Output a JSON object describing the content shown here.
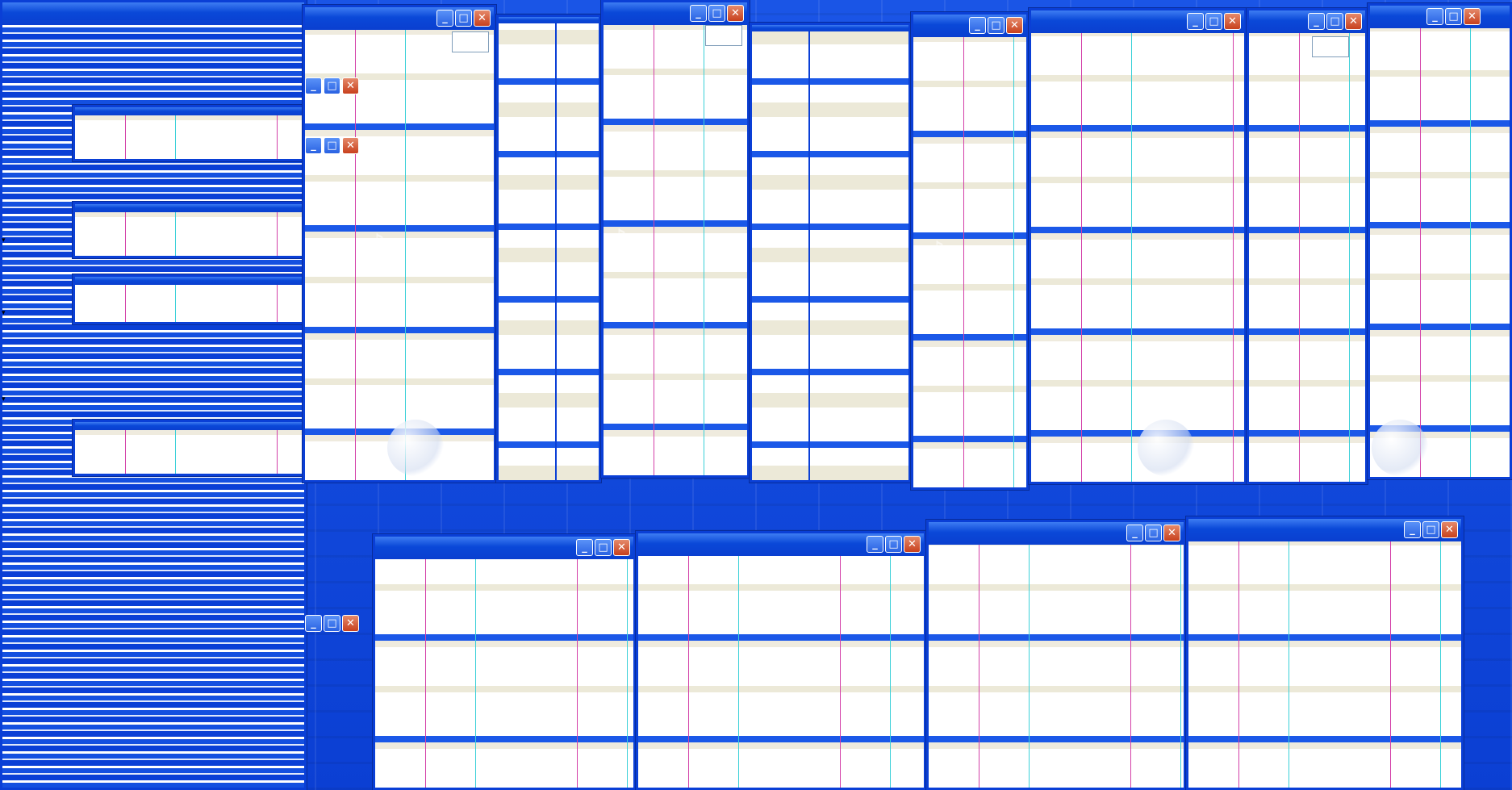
{
  "screen": {
    "description_free": true,
    "theme_colors": {
      "desktop_blue": "#0a3fd6",
      "title_blue": "#2a62e2",
      "close_red": "#c8401d",
      "pane_beige": "#ece9d8",
      "pane_white": "#ffffff"
    }
  },
  "window_controls": {
    "minimize_glyph": "_",
    "maximize_glyph": "□",
    "close_glyph": "✕"
  },
  "icons": {
    "note": "♪",
    "dropdown": "▾",
    "minimize": "minimize-icon",
    "maximize": "maximize-icon",
    "close": "close-icon",
    "music_note": "music-note-icon"
  }
}
